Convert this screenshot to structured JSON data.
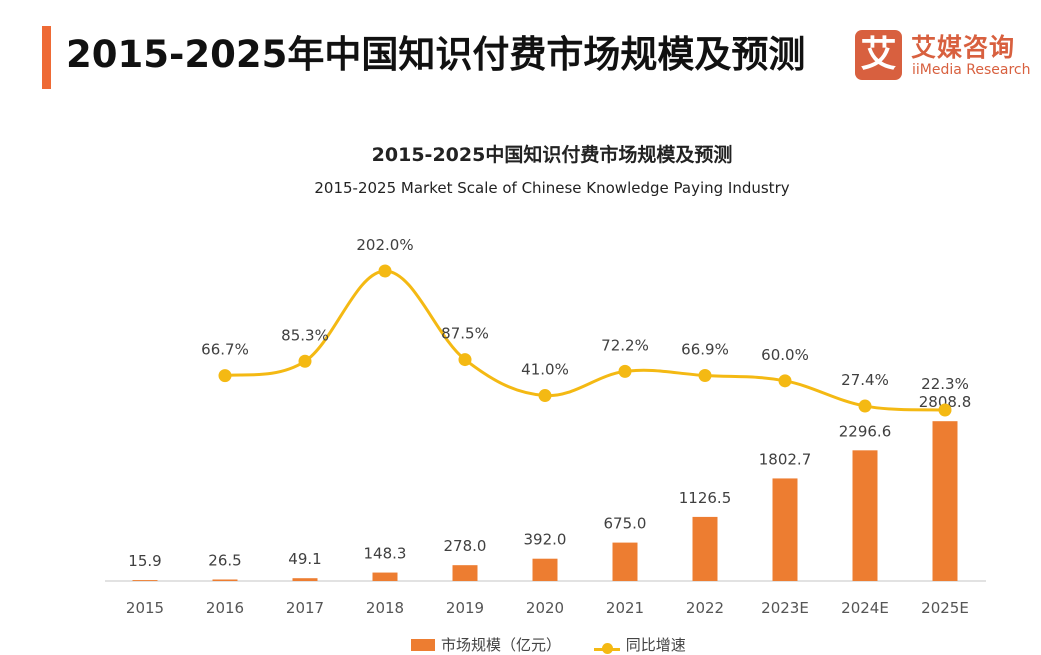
{
  "header": {
    "title": "2015-2025年中国知识付费市场规模及预测",
    "logo": {
      "mark": "艾",
      "name_cn": "艾媒咨询",
      "name_en": "iiMedia Research"
    }
  },
  "colors": {
    "accent": "#ee6a35",
    "bar": "#ed7d31",
    "line": "#f4b913",
    "logo": "#d8603f"
  },
  "chart_data": {
    "type": "bar",
    "title": "2015-2025中国知识付费市场规模及预测",
    "subtitle": "2015-2025 Market Scale of Chinese Knowledge Paying Industry",
    "categories": [
      "2015",
      "2016",
      "2017",
      "2018",
      "2019",
      "2020",
      "2021",
      "2022",
      "2023E",
      "2024E",
      "2025E"
    ],
    "series": [
      {
        "name": "市场规模（亿元）",
        "type": "bar",
        "values": [
          15.9,
          26.5,
          49.1,
          148.3,
          278.0,
          392.0,
          675.0,
          1126.5,
          1802.7,
          2296.6,
          2808.8
        ],
        "labels": [
          "15.9",
          "26.5",
          "49.1",
          "148.3",
          "278.0",
          "392.0",
          "675.0",
          "1126.5",
          "1802.7",
          "2296.6",
          "2808.8"
        ]
      },
      {
        "name": "同比增速",
        "type": "line",
        "values": [
          null,
          66.7,
          85.3,
          202.0,
          87.5,
          41.0,
          72.2,
          66.9,
          60.0,
          27.4,
          22.3
        ],
        "labels": [
          "",
          "66.7%",
          "85.3%",
          "202.0%",
          "87.5%",
          "41.0%",
          "72.2%",
          "66.9%",
          "60.0%",
          "27.4%",
          "22.3%"
        ]
      }
    ],
    "xlabel": "",
    "ylabel": "",
    "ylim": [
      0,
      2900
    ],
    "ylim_secondary": [
      -200,
      230
    ],
    "grid": false,
    "legend": "bottom-center"
  }
}
